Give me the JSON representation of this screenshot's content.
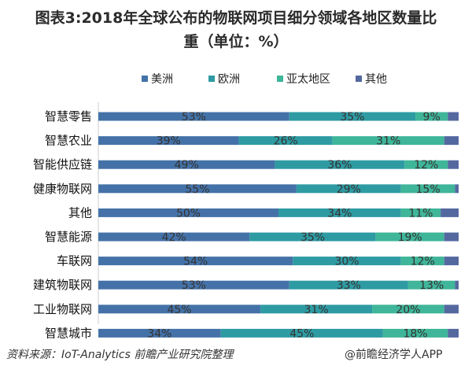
{
  "chart_data": {
    "type": "bar",
    "orientation": "horizontal",
    "stacked": "percent",
    "title": "图表3:2018年全球公布的物联网项目细分领域各地区数量比重（单位：%）",
    "title_line1": "图表3:2018年全球公布的物联网项目细分领域各地区数量比",
    "title_line2": "重（单位：%）",
    "legend_position": "top",
    "categories": [
      "智慧零售",
      "智慧农业",
      "智能供应链",
      "健康物联网",
      "其他",
      "智慧能源",
      "车联网",
      "建筑物联网",
      "工业物联网",
      "智慧城市"
    ],
    "series": [
      {
        "name": "美洲",
        "values": [
          53,
          39,
          49,
          55,
          50,
          42,
          54,
          53,
          45,
          34
        ],
        "labels": [
          "53%",
          "39%",
          "49%",
          "55%",
          "50%",
          "42%",
          "54%",
          "53%",
          "45%",
          "34%"
        ],
        "color": "#4472a8"
      },
      {
        "name": "欧洲",
        "values": [
          35,
          26,
          36,
          29,
          34,
          35,
          30,
          33,
          31,
          45
        ],
        "labels": [
          "35%",
          "26%",
          "36%",
          "29%",
          "34%",
          "35%",
          "30%",
          "33%",
          "31%",
          "45%"
        ],
        "color": "#2e9ba3"
      },
      {
        "name": "亚太地区",
        "values": [
          9,
          31,
          12,
          15,
          11,
          19,
          12,
          13,
          20,
          18
        ],
        "labels": [
          "9%",
          "31%",
          "12%",
          "15%",
          "11%",
          "19%",
          "12%",
          "13%",
          "20%",
          "18%"
        ],
        "color": "#3fb599"
      },
      {
        "name": "其他",
        "values": [
          3,
          4,
          3,
          1,
          5,
          4,
          4,
          1,
          4,
          3
        ],
        "labels": [
          "",
          "",
          "",
          "",
          "",
          "",
          "",
          "",
          "",
          ""
        ],
        "color": "#5468a0"
      }
    ],
    "xlim": [
      0,
      100
    ],
    "grid": false
  },
  "footer": {
    "source": "资料来源：IoT-Analytics 前瞻产业研究院整理",
    "watermark": "@前瞻经济学人APP"
  }
}
